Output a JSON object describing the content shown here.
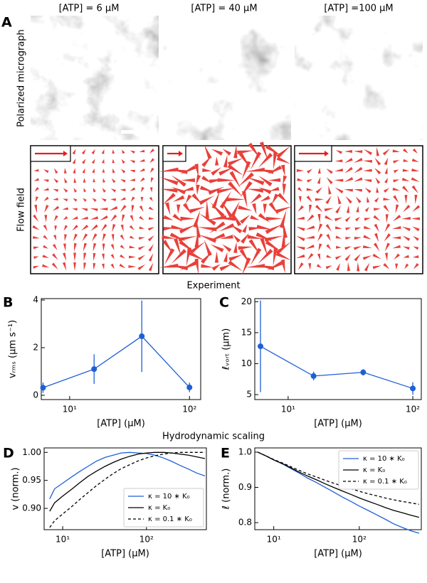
{
  "panel_labels": [
    "A",
    "B",
    "C",
    "D",
    "E"
  ],
  "columns": [
    "[ATP] = 6 μM",
    "[ATP] = 40 μM",
    "[ATP] =100 μM"
  ],
  "rows": [
    "Polarized micrograph",
    "Flow field"
  ],
  "sections": [
    "Experiment",
    "Hydrodynamic scaling"
  ],
  "chart_data": [
    {
      "type": "line",
      "x": [
        6,
        16,
        40,
        100
      ],
      "values": [
        0.32,
        1.1,
        2.48,
        0.33
      ],
      "errors": [
        0.22,
        0.62,
        1.5,
        0.2
      ],
      "color": "#1f5fd6",
      "xlabel": "[ATP] (μM)",
      "ylabel": "vᵣₘₛ (μm s⁻¹)",
      "xlog": true,
      "xlim": [
        5.8,
        124
      ],
      "xticks": [
        {
          "value": 10,
          "label": "10¹"
        },
        {
          "value": 100,
          "label": "10²"
        }
      ],
      "ylim": [
        -0.18,
        4.06
      ],
      "yticks": [
        0,
        2,
        4
      ]
    },
    {
      "type": "line",
      "x": [
        6,
        16,
        40,
        100
      ],
      "values": [
        12.8,
        8.0,
        8.6,
        6.0
      ],
      "errors": [
        7.4,
        0.7,
        0.5,
        1.0
      ],
      "color": "#1f5fd6",
      "xlabel": "[ATP] (μM)",
      "ylabel": "ℓᵥₒᵣₜ (μm)",
      "xlog": true,
      "xlim": [
        5.4,
        117
      ],
      "xticks": [
        {
          "value": 10,
          "label": "10¹"
        },
        {
          "value": 100,
          "label": "10²"
        }
      ],
      "ylim": [
        4.2,
        20.5
      ],
      "yticks": [
        5,
        10,
        15,
        20
      ]
    },
    {
      "type": "line",
      "x": [
        7,
        8,
        10,
        13,
        16,
        20,
        25,
        32,
        40,
        50,
        63,
        80,
        100,
        126,
        160,
        200,
        250,
        320,
        400,
        500
      ],
      "series": [
        {
          "name": "κ = 10 ∗ K₀",
          "color": "#1f5fd6",
          "dash": false,
          "values": [
            0.917,
            0.935,
            0.945,
            0.957,
            0.966,
            0.975,
            0.984,
            0.991,
            0.995,
            0.999,
            1.0,
            0.999,
            0.998,
            0.995,
            0.99,
            0.984,
            0.977,
            0.97,
            0.963,
            0.958
          ]
        },
        {
          "name": "κ = K₀",
          "color": "#000000",
          "dash": false,
          "values": [
            0.895,
            0.91,
            0.922,
            0.935,
            0.946,
            0.957,
            0.966,
            0.975,
            0.982,
            0.988,
            0.993,
            0.997,
            0.999,
            1.0,
            1.0,
            0.999,
            0.997,
            0.995,
            0.992,
            0.989
          ]
        },
        {
          "name": "κ = 0.1 ∗ K₀",
          "color": "#000000",
          "dash": true,
          "values": [
            0.866,
            0.878,
            0.89,
            0.904,
            0.916,
            0.928,
            0.94,
            0.952,
            0.962,
            0.971,
            0.978,
            0.985,
            0.99,
            0.994,
            0.997,
            0.999,
            1.0,
            1.0,
            1.0,
            1.0
          ]
        }
      ],
      "xlabel": "[ATP] (μM)",
      "ylabel": "v (norm.)",
      "xlog": true,
      "legend": "lower right",
      "xlim": [
        6,
        520
      ],
      "xticks": [
        {
          "value": 10,
          "label": "10¹"
        },
        {
          "value": 100,
          "label": "10²"
        }
      ],
      "ylim": [
        0.862,
        1.008
      ],
      "yticks": [
        {
          "value": 0.9,
          "label": "0.90"
        },
        0.95,
        {
          "value": 1.0,
          "label": "1.00"
        }
      ]
    },
    {
      "type": "line",
      "x": [
        6.5,
        8,
        10,
        13,
        16,
        20,
        25,
        32,
        40,
        50,
        63,
        80,
        100,
        126,
        160,
        200,
        250,
        320,
        400,
        500
      ],
      "series": [
        {
          "name": "κ = 10 ∗ K₀",
          "color": "#1f5fd6",
          "dash": false,
          "values": [
            1.0,
            0.99,
            0.978,
            0.965,
            0.953,
            0.94,
            0.926,
            0.913,
            0.9,
            0.887,
            0.873,
            0.86,
            0.847,
            0.835,
            0.822,
            0.81,
            0.797,
            0.786,
            0.777,
            0.77
          ]
        },
        {
          "name": "κ = K₀",
          "color": "#000000",
          "dash": false,
          "values": [
            1.0,
            0.99,
            0.978,
            0.966,
            0.955,
            0.943,
            0.932,
            0.921,
            0.91,
            0.9,
            0.89,
            0.88,
            0.87,
            0.861,
            0.852,
            0.843,
            0.835,
            0.828,
            0.821,
            0.815
          ]
        },
        {
          "name": "κ = 0.1 ∗ K₀",
          "color": "#000000",
          "dash": true,
          "values": [
            1.0,
            0.99,
            0.979,
            0.968,
            0.958,
            0.948,
            0.938,
            0.929,
            0.92,
            0.912,
            0.904,
            0.896,
            0.889,
            0.882,
            0.876,
            0.87,
            0.865,
            0.86,
            0.856,
            0.852
          ]
        }
      ],
      "xlabel": "[ATP] (μM)",
      "ylabel": "ℓ (norm.)",
      "xlog": true,
      "legend": "upper right",
      "xlim": [
        6,
        531
      ],
      "xticks": [
        {
          "value": 10,
          "label": "10¹"
        },
        {
          "value": 100,
          "label": "10²"
        }
      ],
      "ylim": [
        0.78,
        1.012
      ],
      "yticks": [
        0.8,
        0.9,
        {
          "value": 1.0,
          "label": "1.0"
        }
      ]
    }
  ]
}
